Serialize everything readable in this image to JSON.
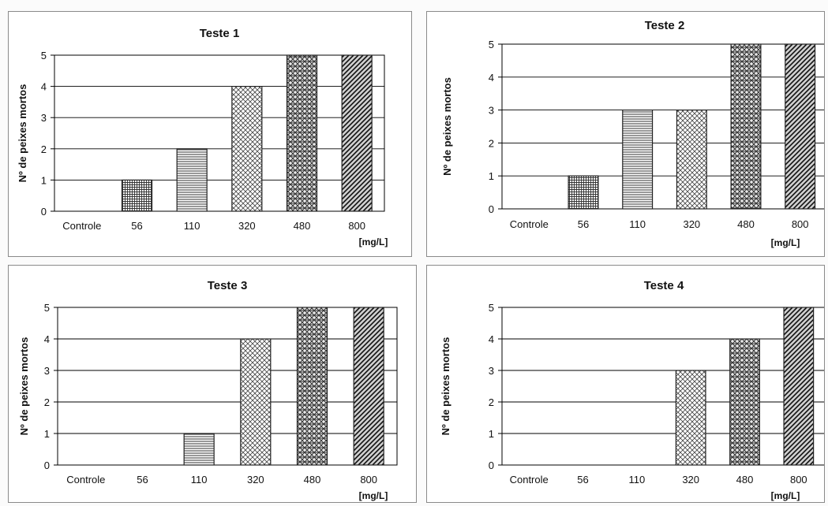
{
  "chart_data": [
    {
      "type": "bar",
      "title": "Teste 1",
      "ylabel": "Nº de peixes mortos",
      "xunit": "[mg/L]",
      "categories": [
        "Controle",
        "56",
        "110",
        "320",
        "480",
        "800"
      ],
      "values": [
        0,
        1,
        2,
        4,
        5,
        5
      ],
      "ylim": [
        0,
        5
      ],
      "yticks": [
        0,
        1,
        2,
        3,
        4,
        5
      ],
      "grid": true
    },
    {
      "type": "bar",
      "title": "Teste 2",
      "ylabel": "Nº de peixes mortos",
      "xunit": "[mg/L]",
      "categories": [
        "Controle",
        "56",
        "110",
        "320",
        "480",
        "800"
      ],
      "values": [
        0,
        1,
        3,
        3,
        5,
        5
      ],
      "ylim": [
        0,
        5
      ],
      "yticks": [
        0,
        1,
        2,
        3,
        4,
        5
      ],
      "grid": true
    },
    {
      "type": "bar",
      "title": "Teste 3",
      "ylabel": "Nº de peixes mortos",
      "xunit": "[mg/L]",
      "categories": [
        "Controle",
        "56",
        "110",
        "320",
        "480",
        "800"
      ],
      "values": [
        0,
        0,
        1,
        4,
        5,
        5
      ],
      "ylim": [
        0,
        5
      ],
      "yticks": [
        0,
        1,
        2,
        3,
        4,
        5
      ],
      "grid": true
    },
    {
      "type": "bar",
      "title": "Teste 4",
      "ylabel": "Nº de peixes mortos",
      "xunit": "[mg/L]",
      "categories": [
        "Controle",
        "56",
        "110",
        "320",
        "480",
        "800"
      ],
      "values": [
        0,
        0,
        0,
        3,
        4,
        5
      ],
      "ylim": [
        0,
        5
      ],
      "yticks": [
        0,
        1,
        2,
        3,
        4,
        5
      ],
      "grid": true
    }
  ],
  "colors": {
    "frame": "#8a8a8a",
    "grid": "#000000",
    "bar_border": "#222222",
    "text": "#111111"
  }
}
